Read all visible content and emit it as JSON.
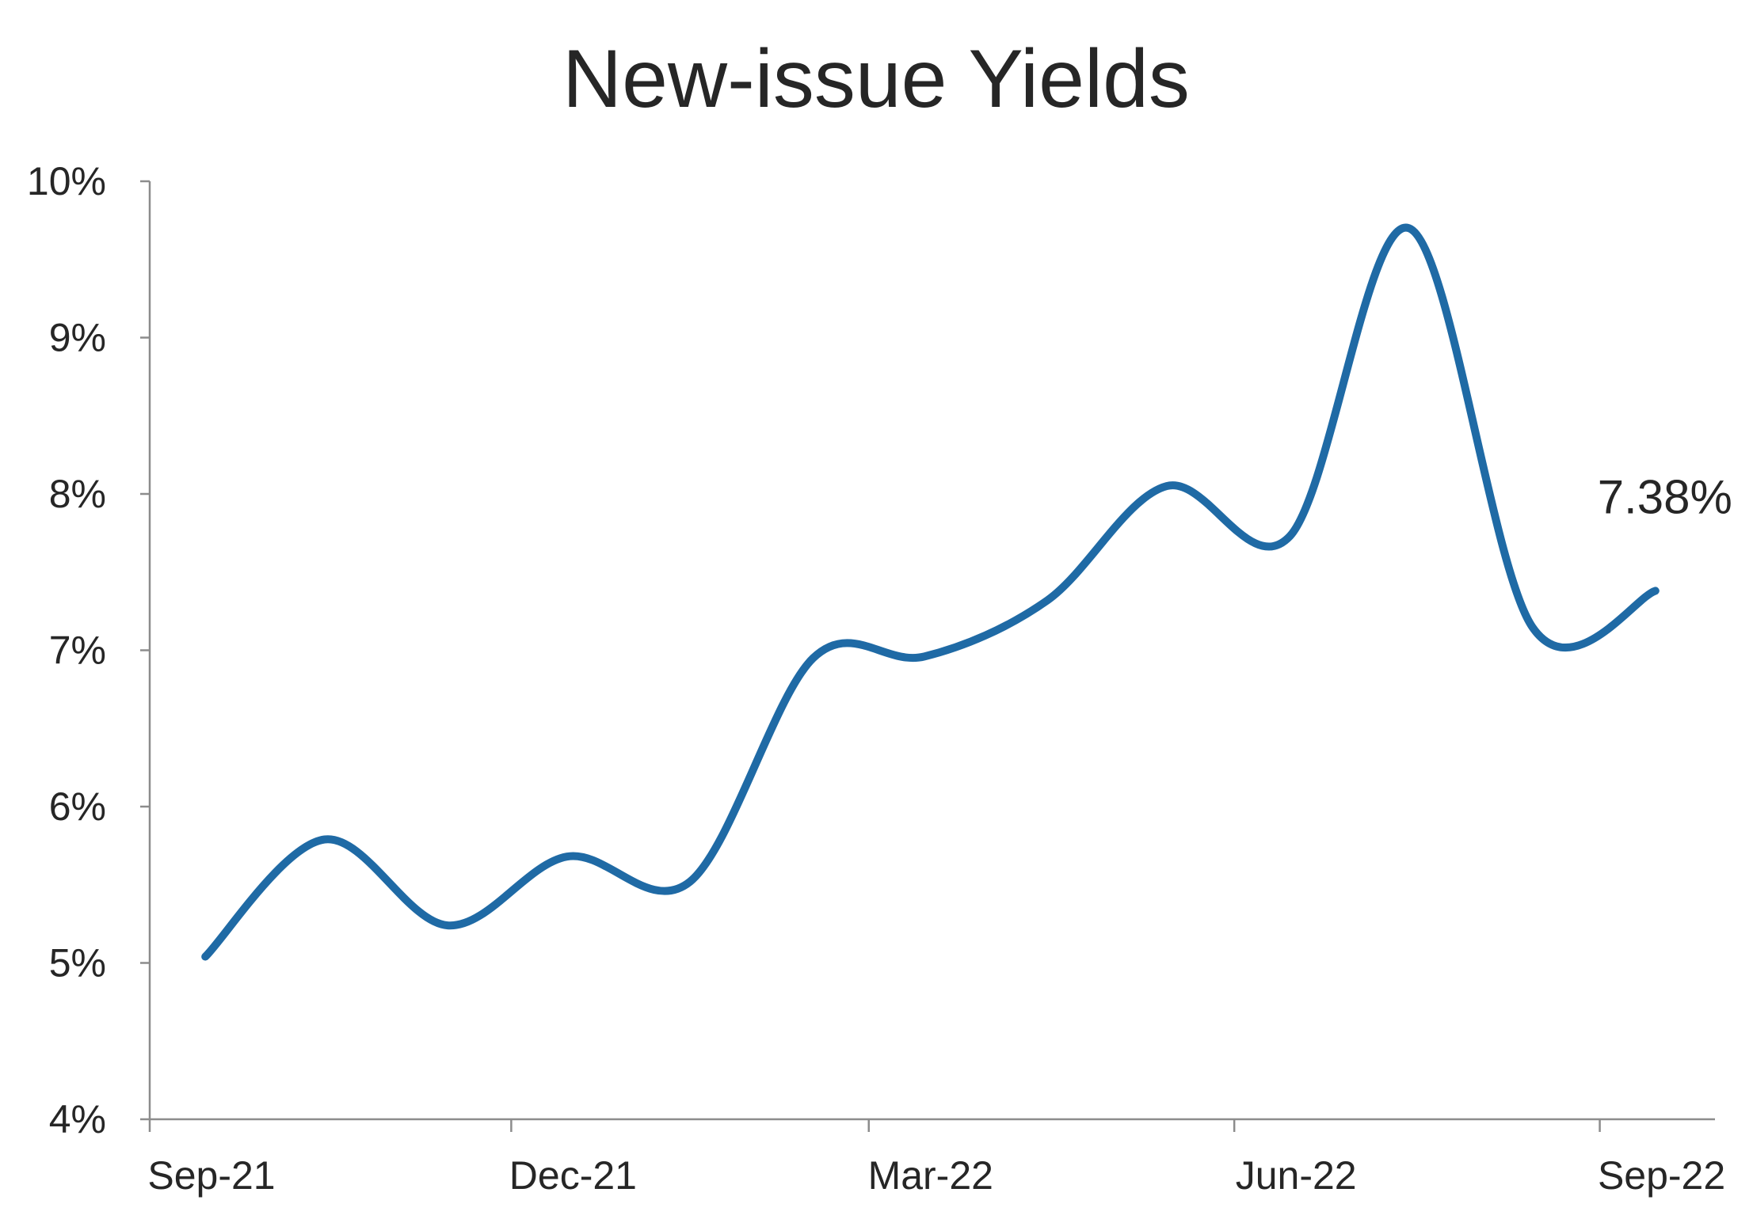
{
  "chart_data": {
    "type": "line",
    "title": "New-issue Yields",
    "xlabel": "",
    "ylabel": "",
    "x_range": [
      "2021-09-01",
      "2022-09-30"
    ],
    "xticks": [
      {
        "label": "Sep-21",
        "date": "2021-09-01"
      },
      {
        "label": "Dec-21",
        "date": "2021-12-01"
      },
      {
        "label": "Mar-22",
        "date": "2022-03-01"
      },
      {
        "label": "Jun-22",
        "date": "2022-06-01"
      },
      {
        "label": "Sep-22",
        "date": "2022-09-01"
      }
    ],
    "ylim": [
      4,
      10
    ],
    "yticks": [
      {
        "value": 4,
        "label": "4%"
      },
      {
        "value": 5,
        "label": "5%"
      },
      {
        "value": 6,
        "label": "6%"
      },
      {
        "value": 7,
        "label": "7%"
      },
      {
        "value": 8,
        "label": "8%"
      },
      {
        "value": 9,
        "label": "9%"
      },
      {
        "value": 10,
        "label": "10%"
      }
    ],
    "grid": false,
    "legend": "none",
    "series": [
      {
        "color": "#1f6aa5",
        "x": [
          "2021-09-15",
          "2021-10-15",
          "2021-11-15",
          "2021-12-15",
          "2022-01-15",
          "2022-02-15",
          "2022-03-15",
          "2022-04-15",
          "2022-05-15",
          "2022-06-15",
          "2022-07-15",
          "2022-08-15",
          "2022-09-15"
        ],
        "y": [
          5.04,
          5.79,
          5.24,
          5.68,
          5.52,
          6.95,
          6.96,
          7.32,
          8.05,
          7.73,
          9.7,
          7.15,
          7.38
        ]
      }
    ],
    "annotations": [
      {
        "text": "7.38%",
        "series": 0,
        "point": 12
      }
    ]
  }
}
